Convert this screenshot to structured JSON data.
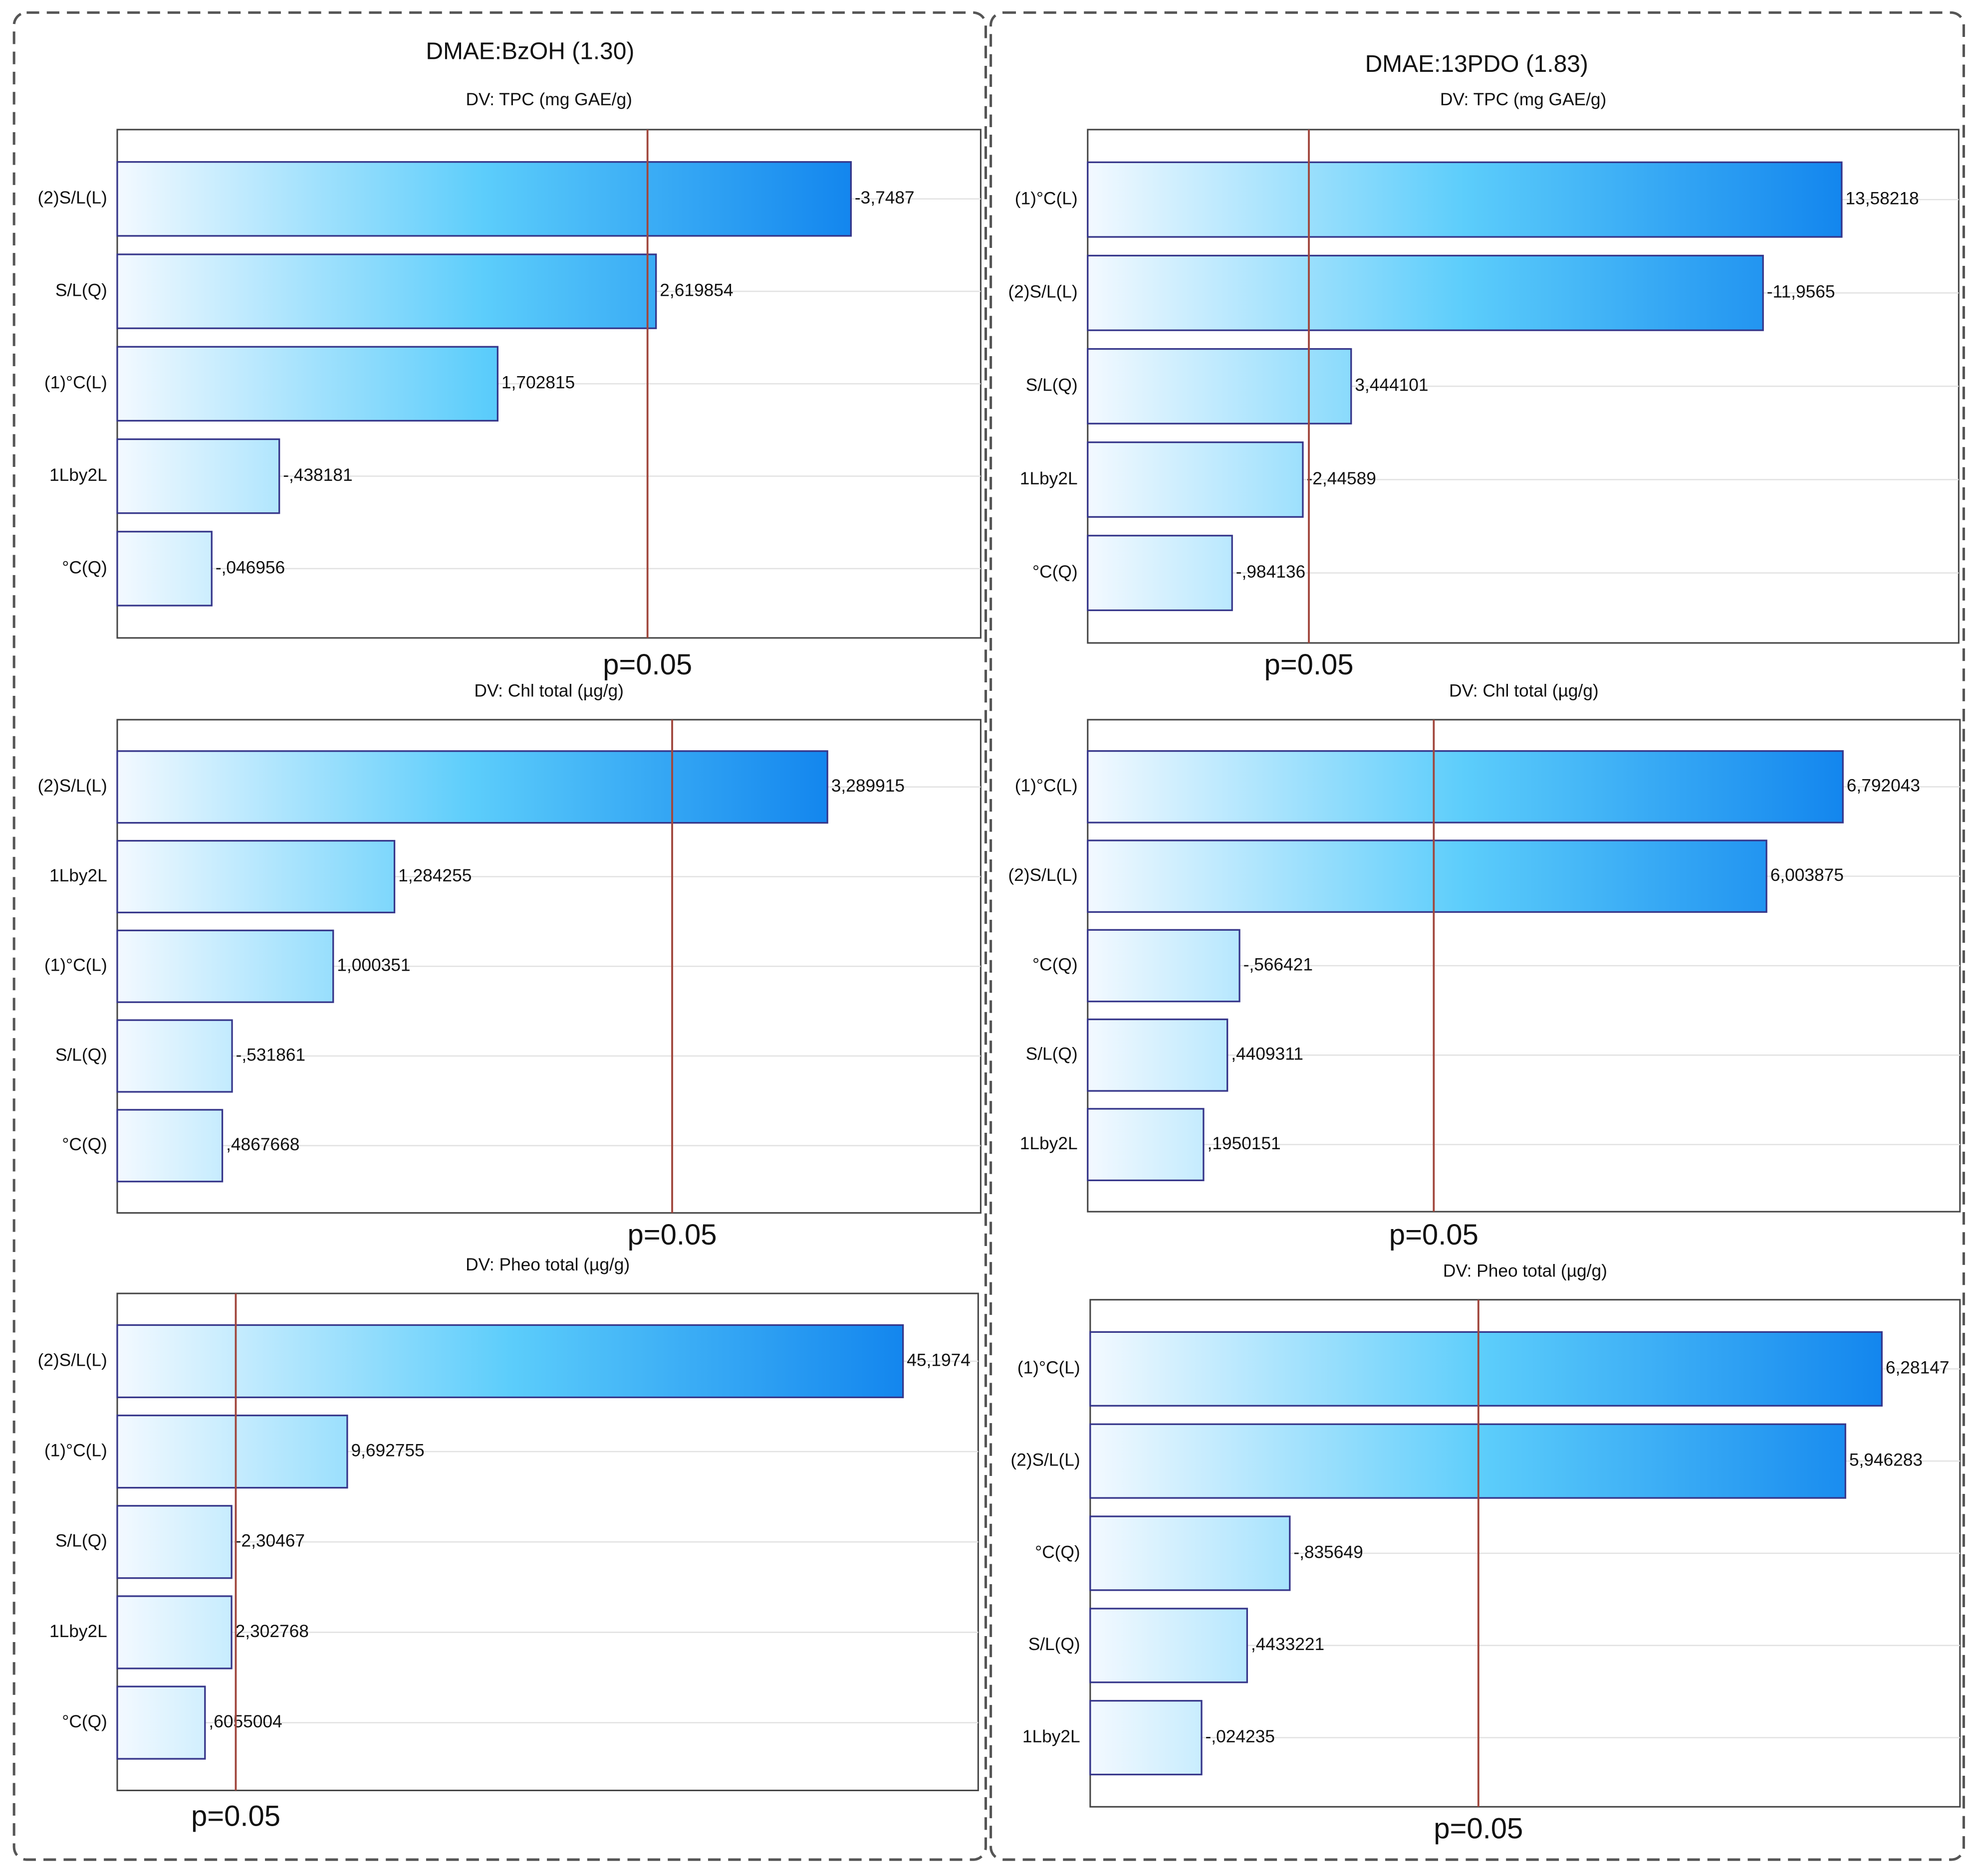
{
  "panel_titles": [
    "DMAE:BzOH (1.30)",
    "DMAE:13PDO (1.83)"
  ],
  "chart_data": [
    {
      "type": "pareto",
      "title": "DV: TPC (mg GAE/g)",
      "categories": [
        "(2)S/L(L)",
        "S/L(Q)",
        "(1)°C(L)",
        "1Lby2L",
        "°C(Q)"
      ],
      "values": [
        -3.7487,
        2.619854,
        1.702815,
        -0.438181,
        -0.046956
      ],
      "value_labels": [
        "-3,7487",
        "2,619854",
        "1,702815",
        "-,438181",
        "-,046956"
      ],
      "xlim": [
        -0.5,
        4.5
      ],
      "threshold": {
        "value": 2.5706,
        "label": "p=0.05"
      },
      "colors": [
        "#f3f9ff",
        "#5ccdfb",
        "#1386ee"
      ],
      "threshold_color": "#a0463c"
    },
    {
      "type": "pareto",
      "title": "DV: Chl total (µg/g)",
      "categories": [
        "(2)S/L(L)",
        "1Lby2L",
        "(1)°C(L)",
        "S/L(Q)",
        "°C(Q)"
      ],
      "values": [
        3.289915,
        1.284255,
        1.000351,
        -0.531861,
        0.4867668
      ],
      "value_labels": [
        "3,289915",
        "1,284255",
        "1,000351",
        "-,531861",
        ",4867668"
      ],
      "xlim": [
        0,
        4
      ],
      "threshold": {
        "value": 2.5706,
        "label": "p=0.05"
      },
      "colors": [
        "#f3f9ff",
        "#5ccdfb",
        "#1386ee"
      ],
      "threshold_color": "#a0463c"
    },
    {
      "type": "pareto",
      "title": "DV: Pheo total (µg/g)",
      "categories": [
        "(2)S/L(L)",
        "(1)°C(L)",
        "S/L(Q)",
        "1Lby2L",
        "°C(Q)"
      ],
      "values": [
        45.1974,
        9.692755,
        -2.30467,
        2.302768,
        0.6055004
      ],
      "value_labels": [
        "45,1974",
        "9,692755",
        "-2,30467",
        "2,302768",
        ",6055004"
      ],
      "xlim": [
        -5,
        50
      ],
      "threshold": {
        "value": 2.5706,
        "label": "p=0.05"
      },
      "colors": [
        "#f3f9ff",
        "#5ccdfb",
        "#1386ee"
      ],
      "threshold_color": "#a0463c"
    },
    {
      "type": "pareto",
      "title": "DV: TPC (mg GAE/g)",
      "categories": [
        "(1)°C(L)",
        "(2)S/L(L)",
        "S/L(Q)",
        "1Lby2L",
        "°C(Q)"
      ],
      "values": [
        13.58218,
        -11.9565,
        3.444101,
        -2.44589,
        -0.984136
      ],
      "value_labels": [
        "13,58218",
        "-11,9565",
        "3,444101",
        "-2,44589",
        "-,984136"
      ],
      "xlim": [
        -2,
        16
      ],
      "threshold": {
        "value": 2.5706,
        "label": "p=0.05"
      },
      "colors": [
        "#f3f9ff",
        "#5ccdfb",
        "#1386ee"
      ],
      "threshold_color": "#a0463c"
    },
    {
      "type": "pareto",
      "title": "DV: Chl total (µg/g)",
      "categories": [
        "(1)°C(L)",
        "(2)S/L(L)",
        "°C(Q)",
        "S/L(Q)",
        "1Lby2L"
      ],
      "values": [
        6.792043,
        6.003875,
        -0.566421,
        0.4409311,
        0.1950151
      ],
      "value_labels": [
        "6,792043",
        "6,003875",
        "-,566421",
        ",4409311",
        ",1950151"
      ],
      "xlim": [
        -1,
        8
      ],
      "threshold": {
        "value": 2.5706,
        "label": "p=0.05"
      },
      "colors": [
        "#f3f9ff",
        "#5ccdfb",
        "#1386ee"
      ],
      "threshold_color": "#a0463c"
    },
    {
      "type": "pareto",
      "title": "DV: Pheo total (µg/g)",
      "categories": [
        "(1)°C(L)",
        "(2)S/L(L)",
        "°C(Q)",
        "S/L(Q)",
        "1Lby2L"
      ],
      "values": [
        6.28147,
        5.946283,
        -0.835649,
        0.4433221,
        -0.024235
      ],
      "value_labels": [
        "6,28147",
        "5,946283",
        "-,835649",
        ",4433221",
        "-,024235"
      ],
      "xlim": [
        -1,
        7
      ],
      "threshold": {
        "value": 2.5706,
        "label": "p=0.05"
      },
      "colors": [
        "#f3f9ff",
        "#5ccdfb",
        "#1386ee"
      ],
      "threshold_color": "#a0463c"
    }
  ]
}
